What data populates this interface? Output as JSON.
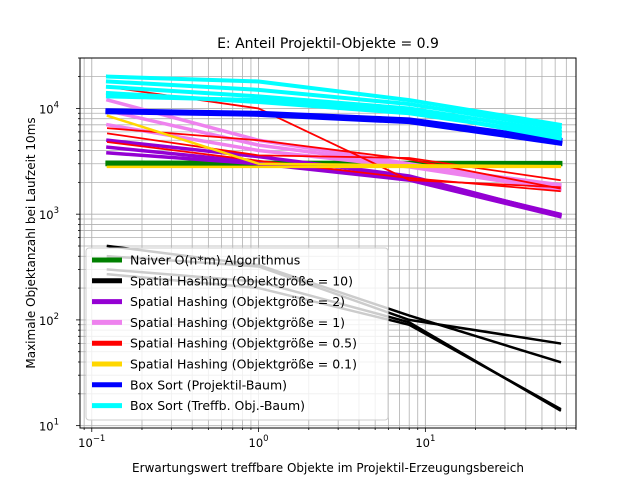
{
  "chart_data": {
    "type": "line",
    "title": "E: Anteil Projektil-Objekte = 0.9",
    "xlabel": "Erwartungswert treffbare Objekte im Projektil-Erzeugungsbereich",
    "ylabel": "Maximale Objektanzahl bei Laufzeit 10ms",
    "xscale": "log",
    "yscale": "log",
    "xlim": [
      0.085,
      80
    ],
    "ylim": [
      9.5,
      30000
    ],
    "x_ticks": [
      {
        "base": "10",
        "exp": "−1",
        "value": 0.1
      },
      {
        "base": "10",
        "exp": "0",
        "value": 1
      },
      {
        "base": "10",
        "exp": "1",
        "value": 10
      }
    ],
    "y_ticks": [
      {
        "base": "10",
        "exp": "1",
        "value": 10
      },
      {
        "base": "10",
        "exp": "2",
        "value": 100
      },
      {
        "base": "10",
        "exp": "3",
        "value": 1000
      },
      {
        "base": "10",
        "exp": "4",
        "value": 10000
      }
    ],
    "grid": true,
    "legend_position": "lower-left",
    "series": [
      {
        "name": "Naiver O(n*m) Algorithmus",
        "color": "#008000",
        "width": 5,
        "lines": [
          [
            [
              0.125,
              3000
            ],
            [
              1,
              3000
            ],
            [
              8,
              3000
            ],
            [
              64,
              3000
            ]
          ],
          [
            [
              0.125,
              3050
            ],
            [
              1,
              3040
            ],
            [
              8,
              3030
            ],
            [
              64,
              3020
            ]
          ]
        ]
      },
      {
        "name": "Spatial Hashing (Objektgröße = 10)",
        "color": "#000000",
        "width": 2.5,
        "lines": [
          [
            [
              0.125,
              300
            ],
            [
              1,
              230
            ],
            [
              8,
              95
            ],
            [
              64,
              14
            ]
          ],
          [
            [
              0.125,
              270
            ],
            [
              1,
              200
            ],
            [
              8,
              90
            ],
            [
              64,
              14.5
            ]
          ],
          [
            [
              0.125,
              500
            ],
            [
              1,
              330
            ],
            [
              8,
              110
            ],
            [
              64,
              40
            ]
          ],
          [
            [
              0.125,
              400
            ],
            [
              1,
              320
            ],
            [
              8,
              100
            ],
            [
              64,
              60
            ]
          ]
        ]
      },
      {
        "name": "Spatial Hashing (Objektgröße = 2)",
        "color": "#9400d3",
        "width": 3.5,
        "lines": [
          [
            [
              0.125,
              4300
            ],
            [
              1,
              3100
            ],
            [
              8,
              2200
            ],
            [
              64,
              1000
            ]
          ],
          [
            [
              0.125,
              3800
            ],
            [
              1,
              3000
            ],
            [
              8,
              2100
            ],
            [
              64,
              950
            ]
          ],
          [
            [
              0.125,
              5000
            ],
            [
              1,
              3500
            ],
            [
              8,
              2300
            ],
            [
              64,
              980
            ]
          ]
        ]
      },
      {
        "name": "Spatial Hashing (Objektgröße = 1)",
        "color": "#ee82ee",
        "width": 3.5,
        "lines": [
          [
            [
              0.125,
              12000
            ],
            [
              1,
              5000
            ],
            [
              8,
              3000
            ],
            [
              64,
              1800
            ]
          ],
          [
            [
              0.125,
              9500
            ],
            [
              1,
              4500
            ],
            [
              8,
              2900
            ],
            [
              64,
              1900
            ]
          ],
          [
            [
              0.125,
              7000
            ],
            [
              1,
              4000
            ],
            [
              8,
              2800
            ],
            [
              64,
              1700
            ]
          ]
        ]
      },
      {
        "name": "Spatial Hashing (Objektgröße = 0.5)",
        "color": "#ff0000",
        "width": 1.8,
        "lines": [
          [
            [
              0.125,
              16000
            ],
            [
              1,
              10000
            ],
            [
              8,
              2100
            ],
            [
              64,
              1800
            ]
          ],
          [
            [
              0.125,
              6500
            ],
            [
              1,
              5000
            ],
            [
              8,
              3300
            ],
            [
              64,
              1750
            ]
          ],
          [
            [
              0.125,
              5800
            ],
            [
              1,
              3600
            ],
            [
              8,
              3400
            ],
            [
              64,
              2100
            ]
          ],
          [
            [
              0.125,
              4800
            ],
            [
              1,
              3200
            ],
            [
              8,
              2200
            ],
            [
              64,
              1650
            ]
          ]
        ]
      },
      {
        "name": "Spatial Hashing (Objektgröße = 0.1)",
        "color": "#ffd700",
        "width": 2.5,
        "lines": [
          [
            [
              0.125,
              2800
            ],
            [
              1,
              2800
            ],
            [
              8,
              2800
            ],
            [
              64,
              2800
            ]
          ],
          [
            [
              0.125,
              8500
            ],
            [
              1,
              3000
            ],
            [
              8,
              2900
            ],
            [
              64,
              2850
            ]
          ]
        ]
      },
      {
        "name": "Box Sort (Projektil-Baum)",
        "color": "#0000ff",
        "width": 5,
        "lines": [
          [
            [
              0.125,
              9500
            ],
            [
              1,
              9000
            ],
            [
              8,
              7800
            ],
            [
              64,
              5000
            ]
          ],
          [
            [
              0.125,
              9300
            ],
            [
              1,
              8800
            ],
            [
              8,
              7500
            ],
            [
              64,
              4700
            ]
          ]
        ]
      },
      {
        "name": "Box Sort (Treffb. Obj.-Baum)",
        "color": "#00ffff",
        "width": 4,
        "lines": [
          [
            [
              0.125,
              20000
            ],
            [
              1,
              18000
            ],
            [
              8,
              12000
            ],
            [
              64,
              7000
            ]
          ],
          [
            [
              0.125,
              18000
            ],
            [
              1,
              15000
            ],
            [
              8,
              11000
            ],
            [
              64,
              6500
            ]
          ],
          [
            [
              0.125,
              16000
            ],
            [
              1,
              13000
            ],
            [
              8,
              10000
            ],
            [
              64,
              6000
            ]
          ],
          [
            [
              0.125,
              14000
            ],
            [
              1,
              11500
            ],
            [
              8,
              9000
            ],
            [
              64,
              5600
            ]
          ],
          [
            [
              0.125,
              13000
            ],
            [
              1,
              12000
            ],
            [
              8,
              9500
            ],
            [
              64,
              5200
            ]
          ]
        ]
      }
    ]
  }
}
